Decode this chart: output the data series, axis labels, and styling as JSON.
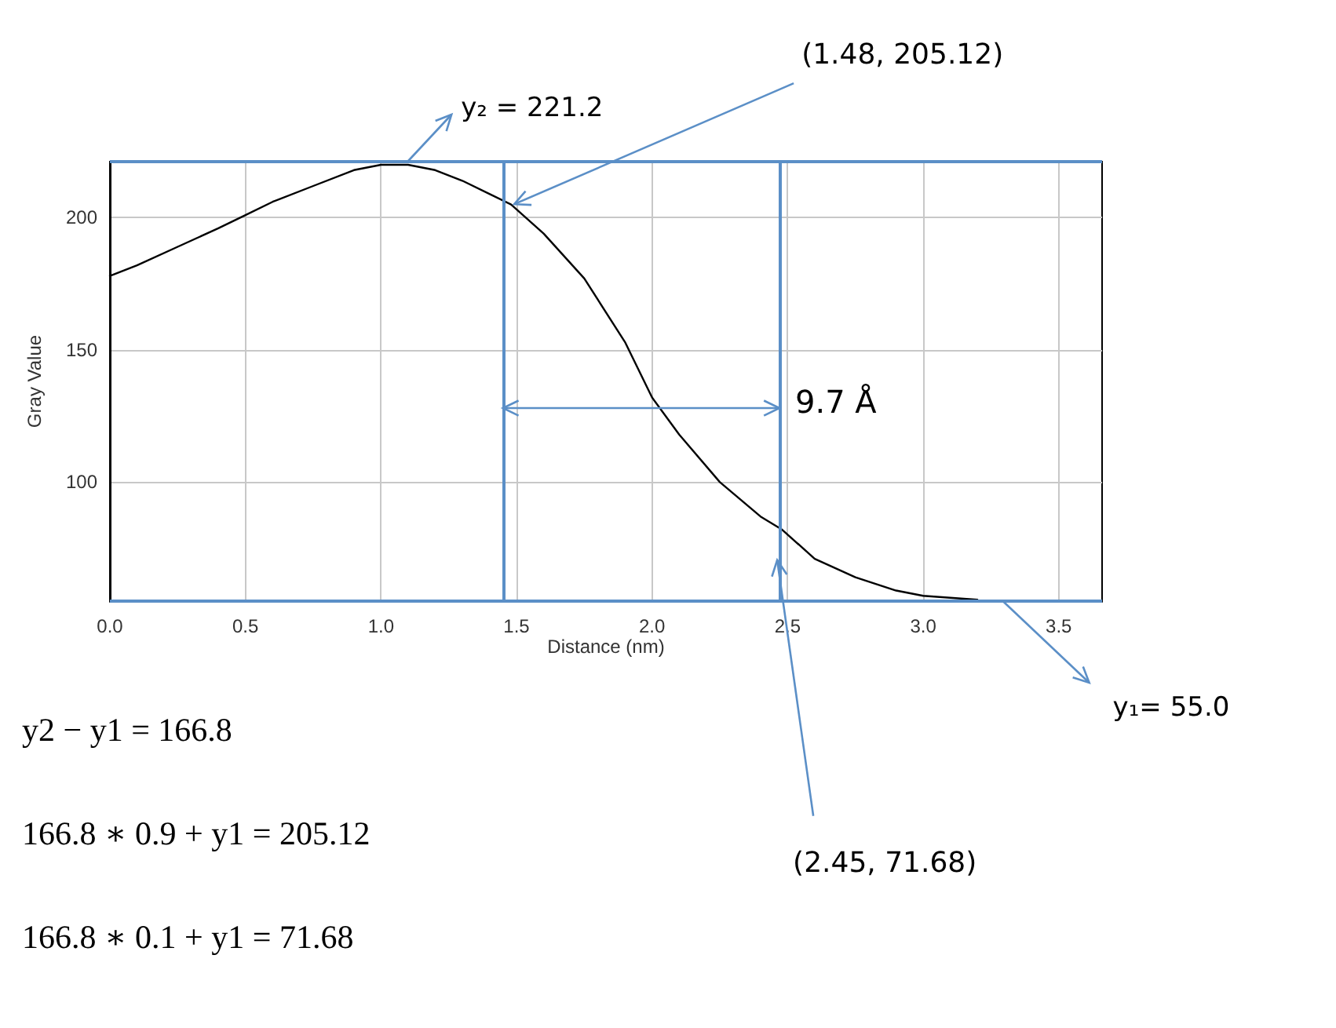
{
  "chart_data": {
    "type": "line",
    "xlabel": "Distance (nm)",
    "ylabel": "Gray Value",
    "x": [
      0,
      0.1,
      0.25,
      0.4,
      0.5,
      0.6,
      0.75,
      0.9,
      1.0,
      1.1,
      1.2,
      1.3,
      1.4,
      1.48,
      1.6,
      1.75,
      1.9,
      2.0,
      2.1,
      2.25,
      2.4,
      2.48,
      2.6,
      2.75,
      2.9,
      3.0,
      3.2
    ],
    "series": [
      {
        "color": "#000000",
        "values": [
          178,
          182,
          189,
          196,
          201,
          206,
          212,
          218,
          220,
          220,
          218,
          214,
          209,
          205,
          194,
          177,
          153,
          132,
          118,
          100,
          87,
          82,
          71,
          64,
          59,
          57,
          55.5
        ]
      }
    ],
    "xlim": [
      0,
      3.66
    ],
    "ylim": [
      55,
      221.2
    ],
    "xticks": [
      {
        "value": 0,
        "label": "0.0"
      },
      0.5,
      {
        "value": 1,
        "label": "1.0"
      },
      1.5,
      {
        "value": 2,
        "label": "2.0"
      },
      2.5,
      {
        "value": 3,
        "label": "3.0"
      },
      3.5
    ],
    "yticks": [
      100,
      150,
      200
    ],
    "grid": true,
    "marker": "none",
    "line_style": "solid",
    "ref_lines": [
      {
        "axis": "y",
        "value": 221.2,
        "label": "y₂ = 221.2",
        "color": "#5b8fc7"
      },
      {
        "axis": "y",
        "value": 55,
        "label": "y₁= 55.0",
        "color": "#5b8fc7"
      },
      {
        "axis": "x",
        "value": 1.45,
        "color": "#5b8fc7"
      },
      {
        "axis": "x",
        "value": 2.47,
        "color": "#5b8fc7"
      }
    ],
    "annotations": [
      {
        "text": "(1.48, 205.12)",
        "x": 1.48,
        "y": 205.12
      },
      {
        "text": "9.7 Å",
        "x": 2.47,
        "y": 128
      },
      {
        "text": "(2.45, 71.68)",
        "x": 2.45,
        "y": 71.68
      },
      "y2 − y1 = 166.8",
      "166.8 ∗ 0.9 + y1 = 205.12",
      "166.8 ∗ 0.1 + y1 = 71.68"
    ]
  }
}
